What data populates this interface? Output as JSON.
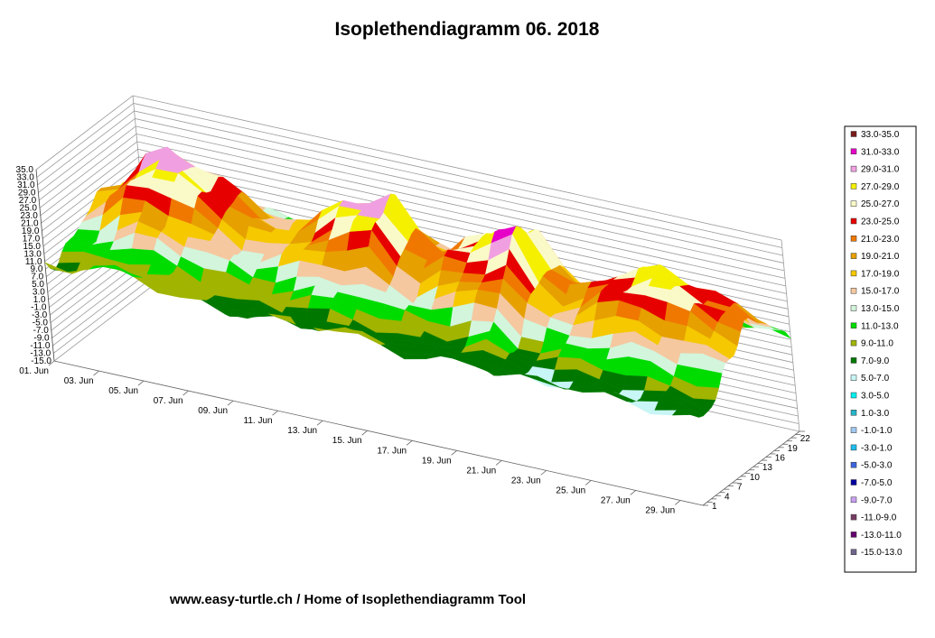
{
  "footer_text": "www.easy-turtle.ch / Home of Isoplethendiagramm Tool",
  "chart_data": {
    "type": "surface3d",
    "title": "Isoplethendiagramm 06. 2018",
    "z_ticks": [
      "35.0",
      "33.0",
      "31.0",
      "29.0",
      "27.0",
      "25.0",
      "23.0",
      "21.0",
      "19.0",
      "17.0",
      "15.0",
      "13.0",
      "11.0",
      "9.0",
      "7.0",
      "5.0",
      "3.0",
      "1.0",
      "-1.0",
      "-3.0",
      "-5.0",
      "-7.0",
      "-9.0",
      "-11.0",
      "-13.0",
      "-15.0"
    ],
    "z_range": [
      -15,
      35
    ],
    "x_ticks": [
      "01. Jun",
      "03. Jun",
      "05. Jun",
      "07. Jun",
      "09. Jun",
      "11. Jun",
      "13. Jun",
      "15. Jun",
      "17. Jun",
      "19. Jun",
      "21. Jun",
      "23. Jun",
      "25. Jun",
      "27. Jun",
      "29. Jun"
    ],
    "y_ticks": [
      "1",
      "4",
      "7",
      "10",
      "13",
      "16",
      "19",
      "22"
    ],
    "legend": [
      {
        "label": "33.0-35.0",
        "color": "#7a1a1a"
      },
      {
        "label": "31.0-33.0",
        "color": "#e600c8"
      },
      {
        "label": "29.0-31.0",
        "color": "#f0a0e0"
      },
      {
        "label": "27.0-29.0",
        "color": "#f5f000"
      },
      {
        "label": "25.0-27.0",
        "color": "#fafac8"
      },
      {
        "label": "23.0-25.0",
        "color": "#e60000"
      },
      {
        "label": "21.0-23.0",
        "color": "#f07800"
      },
      {
        "label": "19.0-21.0",
        "color": "#e6a000"
      },
      {
        "label": "17.0-19.0",
        "color": "#f5c800"
      },
      {
        "label": "15.0-17.0",
        "color": "#f5c8a0"
      },
      {
        "label": "13.0-15.0",
        "color": "#d2f5dc"
      },
      {
        "label": "11.0-13.0",
        "color": "#00dc00"
      },
      {
        "label": "9.0-11.0",
        "color": "#a0b400"
      },
      {
        "label": "7.0-9.0",
        "color": "#007800"
      },
      {
        "label": "5.0-7.0",
        "color": "#c8f5f5"
      },
      {
        "label": "3.0-5.0",
        "color": "#00f0f0"
      },
      {
        "label": "1.0-3.0",
        "color": "#28b4c8"
      },
      {
        "label": "-1.0-1.0",
        "color": "#a0c8f0"
      },
      {
        "label": "-3.0-1.0",
        "color": "#1ebef0"
      },
      {
        "label": "-5.0-3.0",
        "color": "#3c64dc"
      },
      {
        "label": "-7.0-5.0",
        "color": "#0000a0"
      },
      {
        "label": "-9.0-7.0",
        "color": "#c8a0f0"
      },
      {
        "label": "-11.0-9.0",
        "color": "#783c64"
      },
      {
        "label": "-13.0-11.0",
        "color": "#64006e"
      },
      {
        "label": "-15.0-13.0",
        "color": "#6e648c"
      }
    ]
  }
}
